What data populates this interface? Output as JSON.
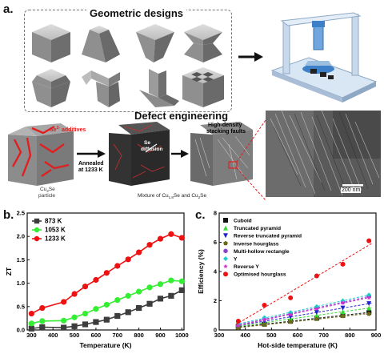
{
  "panel_a": {
    "letter": "a.",
    "geometric_title": "Geometric designs",
    "defect_title": "Defect engineering",
    "se_additives": "Se",
    "se_additives_sup": "2-",
    "se_additives_rest": " additives",
    "cu2se_particle_1": "Cu",
    "cu2se_particle_2": "2",
    "cu2se_particle_3": "Se",
    "cu2se_particle_4": "particle",
    "annealed_1": "Annealed",
    "annealed_2": "at 1233 K",
    "se_diffusion_1": "Se",
    "se_diffusion_2": "diffusion",
    "stacking_1": "High-density",
    "stacking_2": "stacking faults",
    "mixture": "Mixture of Cu",
    "mixture_sub": "1.8",
    "mixture_rest": "Se and Cu",
    "mixture_sub2": "2",
    "mixture_end": "Se",
    "scale_bar": "200 nm"
  },
  "panel_b": {
    "letter": "b."
  },
  "panel_c": {
    "letter": "c."
  },
  "chart_data": [
    {
      "type": "line",
      "xlabel": "Temperature (K)",
      "ylabel": "ZT",
      "xlim": [
        280,
        1010
      ],
      "ylim": [
        0,
        2.5
      ],
      "xticks": [
        300,
        400,
        500,
        600,
        700,
        800,
        900,
        1000
      ],
      "yticks": [
        0.0,
        0.5,
        1.0,
        1.5,
        2.0,
        2.5
      ],
      "legend": "top-left",
      "series": [
        {
          "name": "873 K",
          "color": "#3d3d3d",
          "marker": "square",
          "x": [
            300,
            350,
            450,
            500,
            550,
            600,
            650,
            700,
            750,
            800,
            850,
            900,
            950,
            1000
          ],
          "y": [
            0.03,
            0.06,
            0.05,
            0.08,
            0.12,
            0.17,
            0.22,
            0.3,
            0.38,
            0.47,
            0.56,
            0.67,
            0.73,
            0.85
          ]
        },
        {
          "name": "1053 K",
          "color": "#33ee33",
          "marker": "circle",
          "x": [
            300,
            350,
            450,
            500,
            550,
            600,
            650,
            700,
            750,
            800,
            850,
            900,
            950,
            1000
          ],
          "y": [
            0.14,
            0.19,
            0.2,
            0.27,
            0.35,
            0.45,
            0.54,
            0.64,
            0.73,
            0.82,
            0.91,
            0.98,
            1.06,
            1.04
          ]
        },
        {
          "name": "1233 K",
          "color": "#ee1111",
          "marker": "circle",
          "x": [
            300,
            350,
            450,
            500,
            550,
            600,
            650,
            700,
            750,
            800,
            850,
            900,
            950,
            1000
          ],
          "y": [
            0.35,
            0.47,
            0.6,
            0.77,
            0.93,
            1.07,
            1.22,
            1.37,
            1.51,
            1.66,
            1.82,
            1.95,
            2.05,
            1.97
          ]
        }
      ]
    },
    {
      "type": "scatter",
      "xlabel": "Hot-side temperature (K)",
      "ylabel": "Efficiency (%)",
      "xlim": [
        300,
        900
      ],
      "ylim": [
        0,
        8
      ],
      "xticks": [
        300,
        400,
        500,
        600,
        700,
        800,
        900
      ],
      "yticks": [
        0,
        2,
        4,
        6,
        8
      ],
      "legend": "top-left",
      "series": [
        {
          "name": "Cuboid",
          "color": "#111111",
          "marker": "square",
          "x": [
            373,
            473,
            573,
            673,
            773,
            873
          ],
          "y": [
            0.2,
            0.4,
            0.6,
            0.8,
            1.0,
            1.2
          ]
        },
        {
          "name": "Truncated pyramid",
          "color": "#33dd33",
          "marker": "triangle-up",
          "x": [
            373,
            473,
            573,
            673,
            773,
            873
          ],
          "y": [
            0.25,
            0.5,
            0.75,
            1.0,
            1.25,
            1.5
          ]
        },
        {
          "name": "Reverse truncated pyramid",
          "color": "#2222cc",
          "marker": "triangle-down",
          "x": [
            373,
            473,
            573,
            673,
            773,
            873
          ],
          "y": [
            0.3,
            0.6,
            0.9,
            1.2,
            1.5,
            1.8
          ]
        },
        {
          "name": "Inverse hourglass",
          "color": "#6b6b1a",
          "marker": "pentagon",
          "x": [
            373,
            473,
            573,
            673,
            773,
            873
          ],
          "y": [
            0.15,
            0.35,
            0.55,
            0.75,
            0.95,
            1.1
          ]
        },
        {
          "name": "Multi-hollow rectangle",
          "color": "#8a3fcf",
          "marker": "hexagon",
          "x": [
            373,
            473,
            573,
            673,
            773,
            873
          ],
          "y": [
            0.35,
            0.75,
            1.1,
            1.5,
            1.9,
            2.3
          ]
        },
        {
          "name": "Y",
          "color": "#22cccc",
          "marker": "diamond",
          "x": [
            373,
            473,
            573,
            673,
            773,
            873
          ],
          "y": [
            0.4,
            0.85,
            1.2,
            1.6,
            2.0,
            2.4
          ]
        },
        {
          "name": "Reverse Y",
          "color": "#cc33cc",
          "marker": "star",
          "x": [
            373,
            473,
            573,
            673,
            773,
            873
          ],
          "y": [
            0.3,
            0.7,
            1.05,
            1.45,
            1.85,
            2.2
          ]
        },
        {
          "name": "Optimised hourglass",
          "color": "#ee1111",
          "marker": "circle",
          "x": [
            373,
            473,
            573,
            673,
            773,
            873
          ],
          "y": [
            0.6,
            1.7,
            2.2,
            3.7,
            4.5,
            6.1
          ]
        }
      ]
    }
  ]
}
